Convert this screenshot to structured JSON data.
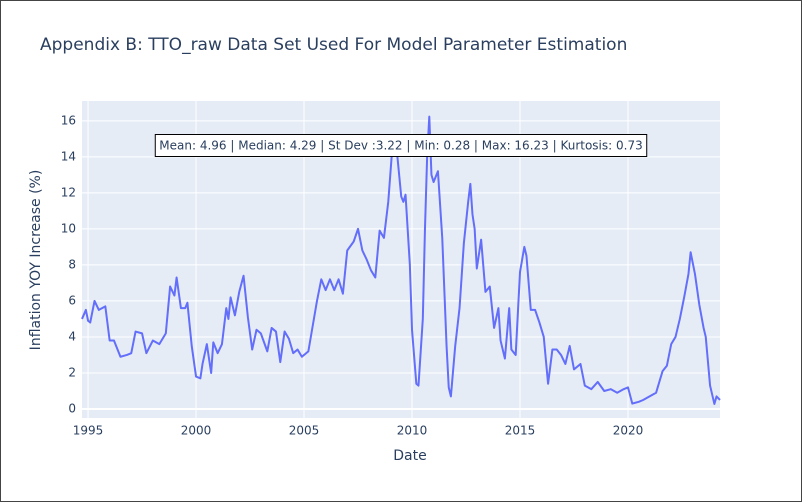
{
  "chart_data": {
    "type": "line",
    "title": "Appendix B: TTO_raw Data Set Used For Model Parameter Estimation",
    "x_label": "Date",
    "y_label": "Inflation YOY Increase (%)",
    "annotation": "Mean: 4.96 | Median: 4.29 | St Dev :3.22 | Min: 0.28 | Max: 16.23 | Kurtosis: 0.73",
    "grid": true,
    "xlim": [
      1994.72,
      2024.26
    ],
    "xticks": [
      1995,
      2000,
      2005,
      2010,
      2015,
      2020
    ],
    "ylim": [
      -0.5,
      17.1
    ],
    "yticks": [
      0,
      2,
      4,
      6,
      8,
      10,
      12,
      14,
      16
    ],
    "x": [
      1994.72,
      1994.9,
      1995.0,
      1995.1,
      1995.3,
      1995.5,
      1995.8,
      1996.0,
      1996.2,
      1996.5,
      1996.8,
      1997.0,
      1997.2,
      1997.5,
      1997.7,
      1998.0,
      1998.3,
      1998.6,
      1998.8,
      1999.0,
      1999.1,
      1999.3,
      1999.5,
      1999.6,
      1999.8,
      2000.0,
      2000.2,
      2000.3,
      2000.5,
      2000.7,
      2000.8,
      2001.0,
      2001.2,
      2001.4,
      2001.5,
      2001.6,
      2001.8,
      2002.0,
      2002.2,
      2002.4,
      2002.6,
      2002.8,
      2003.0,
      2003.3,
      2003.5,
      2003.7,
      2003.9,
      2004.1,
      2004.3,
      2004.5,
      2004.7,
      2004.9,
      2005.2,
      2005.4,
      2005.6,
      2005.8,
      2006.0,
      2006.2,
      2006.4,
      2006.6,
      2006.8,
      2007.0,
      2007.3,
      2007.5,
      2007.7,
      2007.9,
      2008.1,
      2008.3,
      2008.5,
      2008.7,
      2008.9,
      2009.1,
      2009.3,
      2009.5,
      2009.6,
      2009.7,
      2009.9,
      2010.0,
      2010.2,
      2010.3,
      2010.5,
      2010.6,
      2010.7,
      2010.8,
      2010.9,
      2011.0,
      2011.2,
      2011.4,
      2011.6,
      2011.7,
      2011.8,
      2012.0,
      2012.2,
      2012.4,
      2012.6,
      2012.7,
      2012.8,
      2012.9,
      2013.0,
      2013.2,
      2013.4,
      2013.6,
      2013.8,
      2014.0,
      2014.1,
      2014.3,
      2014.5,
      2014.6,
      2014.8,
      2015.0,
      2015.2,
      2015.3,
      2015.5,
      2015.7,
      2015.9,
      2016.1,
      2016.3,
      2016.5,
      2016.7,
      2016.9,
      2017.1,
      2017.3,
      2017.5,
      2017.8,
      2018.0,
      2018.3,
      2018.6,
      2018.9,
      2019.2,
      2019.5,
      2019.8,
      2020.0,
      2020.2,
      2020.5,
      2020.7,
      2021.0,
      2021.3,
      2021.6,
      2021.8,
      2022.0,
      2022.2,
      2022.4,
      2022.6,
      2022.8,
      2022.9,
      2023.1,
      2023.3,
      2023.5,
      2023.6,
      2023.8,
      2024.0,
      2024.1,
      2024.26
    ],
    "series": [
      {
        "name": "TTO_raw",
        "color": "#636efa",
        "values": [
          5.0,
          5.5,
          4.9,
          4.8,
          6.0,
          5.5,
          5.7,
          3.8,
          3.8,
          2.9,
          3.0,
          3.1,
          4.3,
          4.2,
          3.1,
          3.8,
          3.6,
          4.2,
          6.8,
          6.3,
          7.3,
          5.6,
          5.6,
          5.9,
          3.5,
          1.8,
          1.7,
          2.5,
          3.6,
          2.0,
          3.7,
          3.1,
          3.6,
          5.6,
          5.0,
          6.2,
          5.2,
          6.5,
          7.4,
          5.1,
          3.3,
          4.4,
          4.2,
          3.2,
          4.5,
          4.3,
          2.6,
          4.3,
          3.9,
          3.1,
          3.3,
          2.9,
          3.2,
          4.6,
          6.0,
          7.2,
          6.6,
          7.2,
          6.6,
          7.2,
          6.4,
          8.8,
          9.3,
          10.0,
          8.8,
          8.3,
          7.7,
          7.3,
          9.9,
          9.5,
          11.5,
          14.7,
          14.3,
          11.8,
          11.5,
          11.9,
          8.0,
          4.4,
          1.4,
          1.3,
          5.0,
          10.0,
          14.0,
          16.23,
          13.0,
          12.6,
          13.2,
          9.5,
          3.5,
          1.2,
          0.7,
          3.5,
          5.6,
          9.2,
          11.5,
          12.5,
          10.8,
          10.0,
          7.8,
          9.4,
          6.5,
          6.8,
          4.5,
          5.6,
          3.8,
          2.8,
          5.6,
          3.3,
          3.0,
          7.6,
          9.0,
          8.5,
          5.5,
          5.5,
          4.8,
          4.0,
          1.4,
          3.3,
          3.3,
          3.0,
          2.5,
          3.5,
          2.2,
          2.5,
          1.3,
          1.1,
          1.5,
          1.0,
          1.1,
          0.9,
          1.1,
          1.2,
          0.3,
          0.4,
          0.5,
          0.7,
          0.9,
          2.1,
          2.4,
          3.6,
          4.0,
          5.0,
          6.2,
          7.5,
          8.7,
          7.5,
          5.8,
          4.5,
          4.0,
          1.3,
          0.28,
          0.7,
          0.5
        ]
      }
    ]
  }
}
